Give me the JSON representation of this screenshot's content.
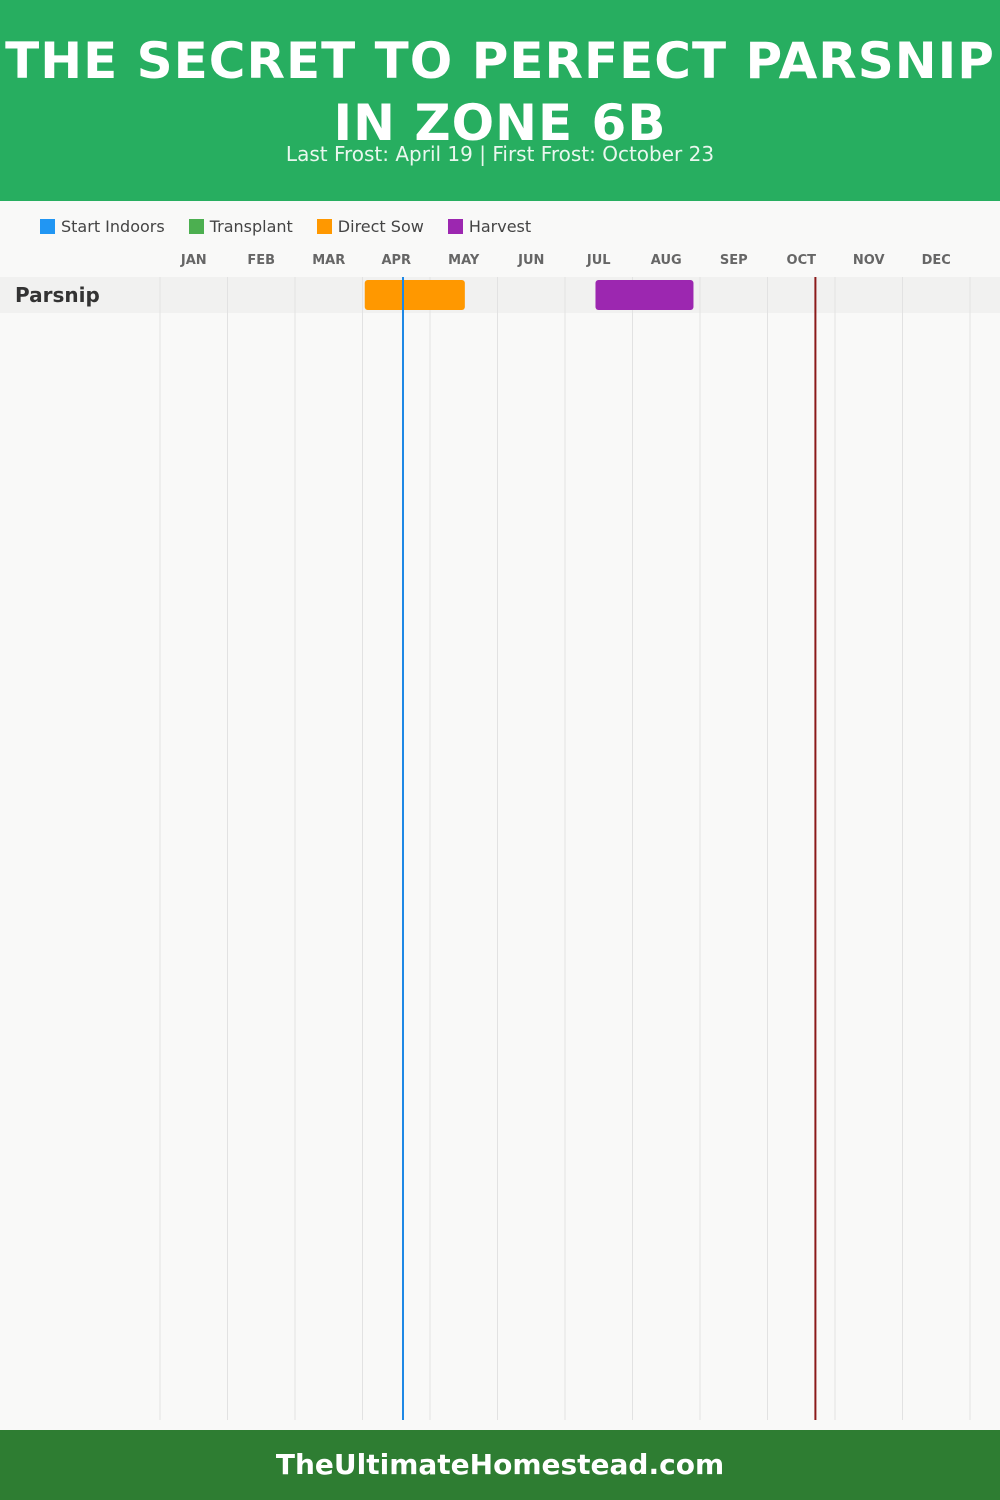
{
  "header": {
    "title": "THE SECRET TO PERFECT PARSNIP IN ZONE 6B",
    "subtitle": "Last Frost: April 19 | First Frost: October 23"
  },
  "legend": [
    {
      "label": "Start Indoors",
      "color": "#2196f3"
    },
    {
      "label": "Transplant",
      "color": "#4caf50"
    },
    {
      "label": "Direct Sow",
      "color": "#ff9800"
    },
    {
      "label": "Harvest",
      "color": "#9c27b0"
    }
  ],
  "footer": {
    "text": "TheUltimateHomestead.com"
  },
  "chart_data": {
    "type": "gantt",
    "months": [
      "JAN",
      "FEB",
      "MAR",
      "APR",
      "MAY",
      "JUN",
      "JUL",
      "AUG",
      "SEP",
      "OCT",
      "NOV",
      "DEC"
    ],
    "rows": [
      {
        "name": "Parsnip",
        "tasks": [
          {
            "phase": "Direct Sow",
            "start": "Apr 2",
            "end": "May 17",
            "color": "#ff9800"
          },
          {
            "phase": "Harvest",
            "start": "Jul 15",
            "end": "Aug 29",
            "color": "#9c27b0"
          }
        ]
      }
    ],
    "markers": [
      {
        "label": "Last Frost",
        "date": "Apr 19",
        "color": "#1e88e5"
      },
      {
        "label": "First Frost",
        "date": "Oct 23",
        "color": "#8b1a1a"
      }
    ]
  }
}
